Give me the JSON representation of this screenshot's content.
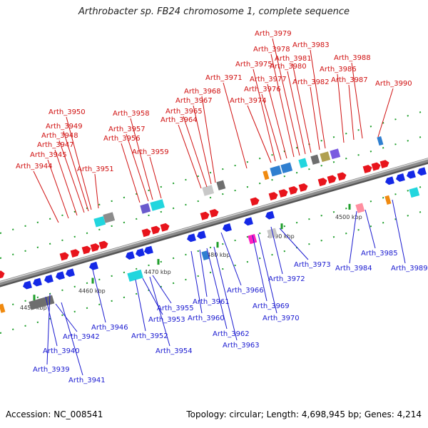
{
  "title": "Arthrobacter sp. FB24 chromosome 1, complete sequence",
  "footer": {
    "accession": "Accession: NC_008541",
    "summary": "Topology: circular; Length: 4,698,945 bp; Genes: 4,214"
  },
  "colors": {
    "forward_gene": "#e8141c",
    "reverse_gene": "#1428e6",
    "forward_label": "#d01010",
    "reverse_label": "#1a1ad0",
    "axis": "#8c8c8c",
    "tick": "#1e9e2a"
  },
  "scale_ticks": [
    {
      "label": "4450 kbp"
    },
    {
      "label": "4460 kbp"
    },
    {
      "label": "4470 kbp"
    },
    {
      "label": "4480 kbp"
    },
    {
      "label": "4490 kbp"
    },
    {
      "label": "4500 kbp"
    }
  ],
  "forward_genes": [
    "Arth_3944",
    "Arth_3945",
    "Arth_3947",
    "Arth_3948",
    "Arth_3949",
    "Arth_3950",
    "Arth_3951",
    "Arth_3956",
    "Arth_3957",
    "Arth_3958",
    "Arth_3959",
    "Arth_3964",
    "Arth_3965",
    "Arth_3967",
    "Arth_3968",
    "Arth_3971",
    "Arth_3974",
    "Arth_3975",
    "Arth_3976",
    "Arth_3977",
    "Arth_3978",
    "Arth_3979",
    "Arth_3980",
    "Arth_3981",
    "Arth_3982",
    "Arth_3983",
    "Arth_3986",
    "Arth_3987",
    "Arth_3988",
    "Arth_3990"
  ],
  "reverse_genes": [
    "Arth_3939",
    "Arth_3940",
    "Arth_3941",
    "Arth_3942",
    "Arth_3946",
    "Arth_3952",
    "Arth_3953",
    "Arth_3954",
    "Arth_3955",
    "Arth_3960",
    "Arth_3961",
    "Arth_3962",
    "Arth_3963",
    "Arth_3966",
    "Arth_3969",
    "Arth_3970",
    "Arth_3972",
    "Arth_3973",
    "Arth_3984",
    "Arth_3985",
    "Arth_3989"
  ]
}
